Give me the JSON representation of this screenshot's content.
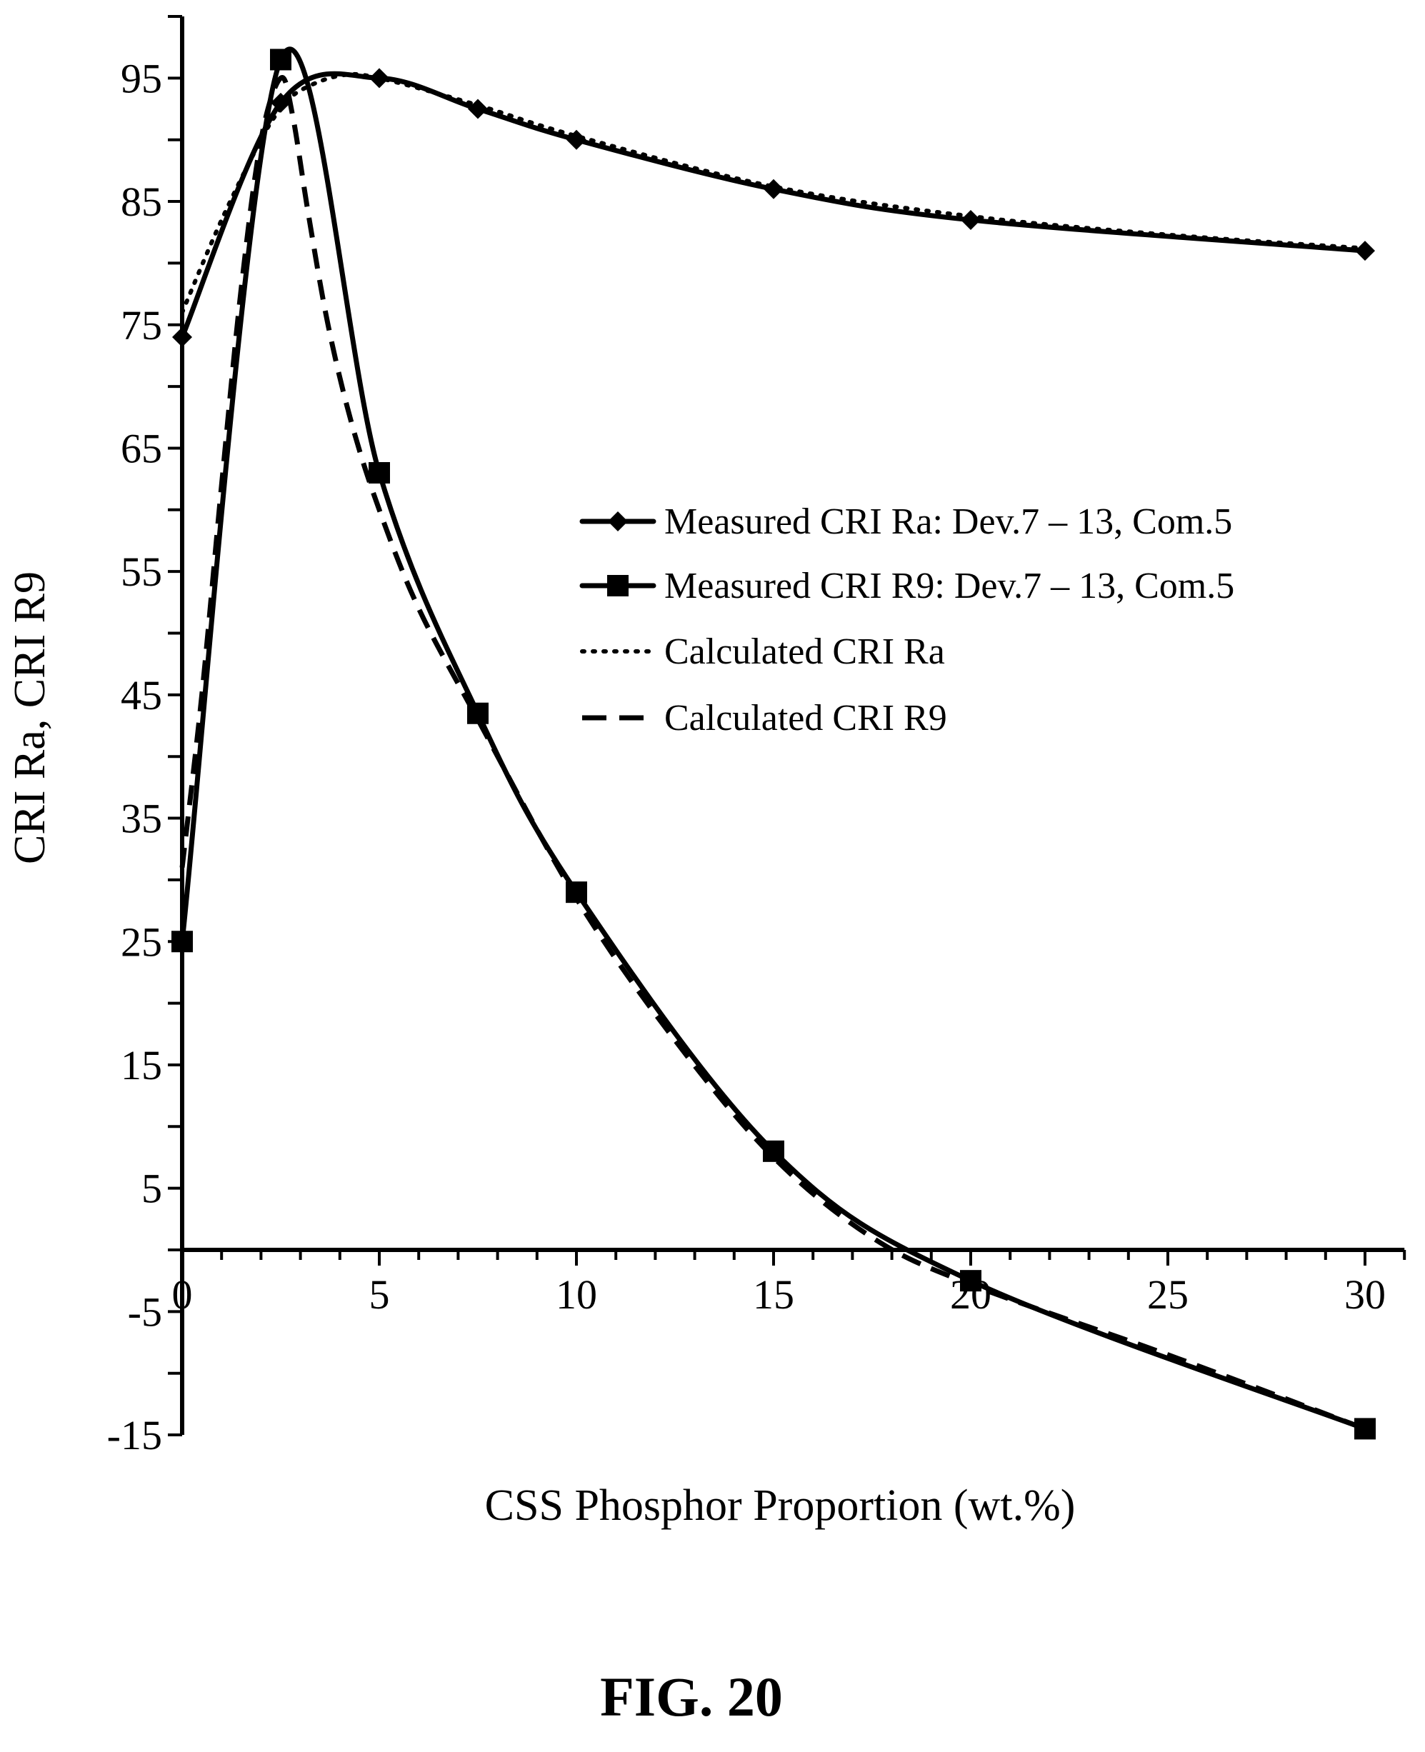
{
  "chart_data": {
    "type": "line",
    "xlabel": "CSS Phosphor Proportion (wt.%)",
    "ylabel": "CRI Ra, CRI R9",
    "xlim": [
      0,
      31
    ],
    "ylim": [
      -15,
      100
    ],
    "xticks": [
      0,
      5,
      10,
      15,
      20,
      25,
      30
    ],
    "yticks": [
      -15,
      -5,
      5,
      15,
      25,
      35,
      45,
      55,
      65,
      75,
      85,
      95
    ],
    "legend_position": "right-center",
    "grid": false,
    "series": [
      {
        "name": "Measured CRI Ra: Dev.7 – 13, Com.5",
        "style": "solid-diamond",
        "x": [
          0,
          2.5,
          5,
          7.5,
          10,
          15,
          20,
          30
        ],
        "y": [
          74,
          93,
          95,
          92.5,
          90,
          86,
          83.5,
          81
        ]
      },
      {
        "name": "Measured CRI R9: Dev.7 – 13, Com.5",
        "style": "solid-square",
        "x": [
          0,
          2.5,
          5,
          7.5,
          10,
          15,
          20,
          30
        ],
        "y": [
          25,
          96.5,
          63,
          43.5,
          29,
          8,
          -2.5,
          -14.5
        ]
      },
      {
        "name": "Calculated CRI Ra",
        "style": "dotted",
        "x": [
          0,
          1,
          2,
          2.5,
          3,
          4,
          5,
          7.5,
          10,
          15,
          20,
          25,
          30
        ],
        "y": [
          76,
          83.5,
          90,
          92.5,
          94,
          95.2,
          95,
          92.8,
          90.3,
          86.2,
          83.8,
          82.3,
          81.2
        ]
      },
      {
        "name": "Calculated CRI R9",
        "style": "dashed",
        "x": [
          0,
          0.5,
          1,
          1.5,
          2,
          2.5,
          2.8,
          3.2,
          3.7,
          4.3,
          5,
          6,
          7.5,
          10,
          12.5,
          15,
          17.5,
          20,
          25,
          30
        ],
        "y": [
          31,
          45,
          62,
          78,
          90,
          95,
          92,
          84,
          75,
          67,
          60,
          52,
          43,
          28.5,
          17,
          7.5,
          1,
          -2.8,
          -8.5,
          -14.5
        ]
      }
    ]
  },
  "figure_label": "FIG. 20",
  "colors": {
    "ink": "#000000",
    "background": "#ffffff"
  }
}
